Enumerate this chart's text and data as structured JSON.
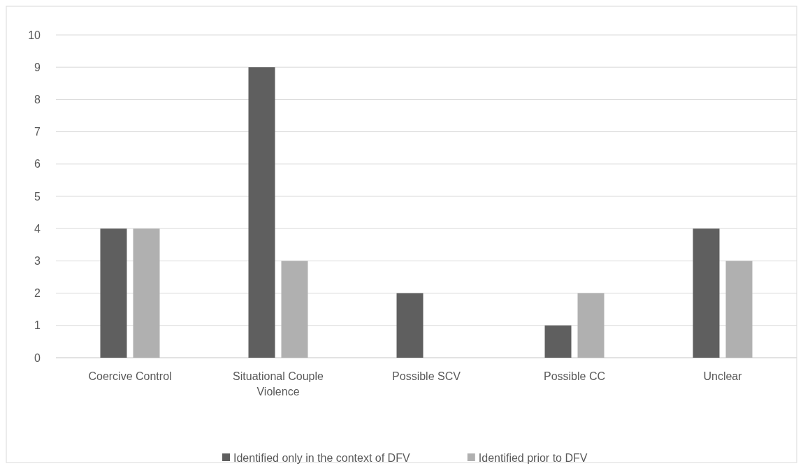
{
  "chart_data": {
    "type": "bar",
    "categories": [
      "Coercive Control",
      "Situational Couple Violence",
      "Possible SCV",
      "Possible CC",
      "Unclear"
    ],
    "series": [
      {
        "name": "Identified only in the context of DFV",
        "color": "#5f5f5f",
        "values": [
          4,
          9,
          2,
          1,
          4
        ]
      },
      {
        "name": "Identified prior to DFV",
        "color": "#b0b0b0",
        "values": [
          4,
          3,
          0,
          2,
          3
        ]
      }
    ],
    "ylim": [
      0,
      10
    ],
    "yticks": [
      0,
      1,
      2,
      3,
      4,
      5,
      6,
      7,
      8,
      9,
      10
    ],
    "grid": "y",
    "legend": "bottom"
  }
}
